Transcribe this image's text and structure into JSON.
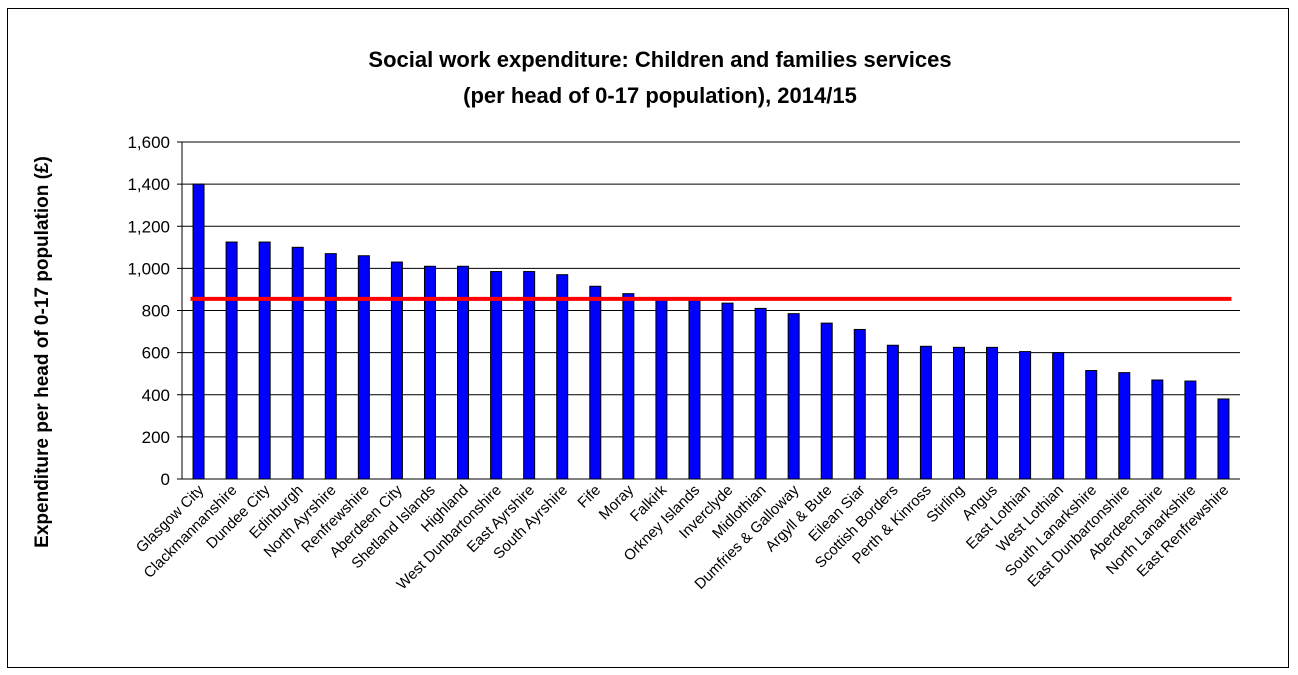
{
  "chart_data": {
    "type": "bar",
    "title": "Social work expenditure: Children and families services",
    "subtitle": "(per head of 0-17 population), 2014/15",
    "xlabel": "",
    "ylabel": "Expenditure per head of 0-17 population (£)",
    "ylim": [
      0,
      1600
    ],
    "yticks": [
      0,
      200,
      400,
      600,
      800,
      1000,
      1200,
      1400,
      1600
    ],
    "ytick_labels": [
      "0",
      "200",
      "400",
      "600",
      "800",
      "1,000",
      "1,200",
      "1,400",
      "1,600"
    ],
    "grid": true,
    "legend": "none",
    "bar_color": "#0000ff",
    "reference_line": {
      "value": 855,
      "color": "#ff0000"
    },
    "categories": [
      "Glasgow City",
      "Clackmannanshire",
      "Dundee City",
      "Edinburgh",
      "North Ayrshire",
      "Renfrewshire",
      "Aberdeen City",
      "Shetland Islands",
      "Highland",
      "West Dunbartonshire",
      "East Ayrshire",
      "South Ayrshire",
      "Fife",
      "Moray",
      "Falkirk",
      "Orkney Islands",
      "Inverclyde",
      "Midlothian",
      "Dumfries & Galloway",
      "Argyll & Bute",
      "Eilean Siar",
      "Scottish Borders",
      "Perth & Kinross",
      "Stirling",
      "Angus",
      "East Lothian",
      "West Lothian",
      "South Lanarkshire",
      "East Dunbartonshire",
      "Aberdeenshire",
      "North Lanarkshire",
      "East Renfrewshire"
    ],
    "values": [
      1400,
      1125,
      1125,
      1100,
      1070,
      1060,
      1030,
      1010,
      1010,
      985,
      985,
      970,
      915,
      880,
      855,
      850,
      835,
      810,
      785,
      740,
      710,
      635,
      630,
      625,
      625,
      605,
      600,
      515,
      505,
      470,
      465,
      380
    ]
  }
}
